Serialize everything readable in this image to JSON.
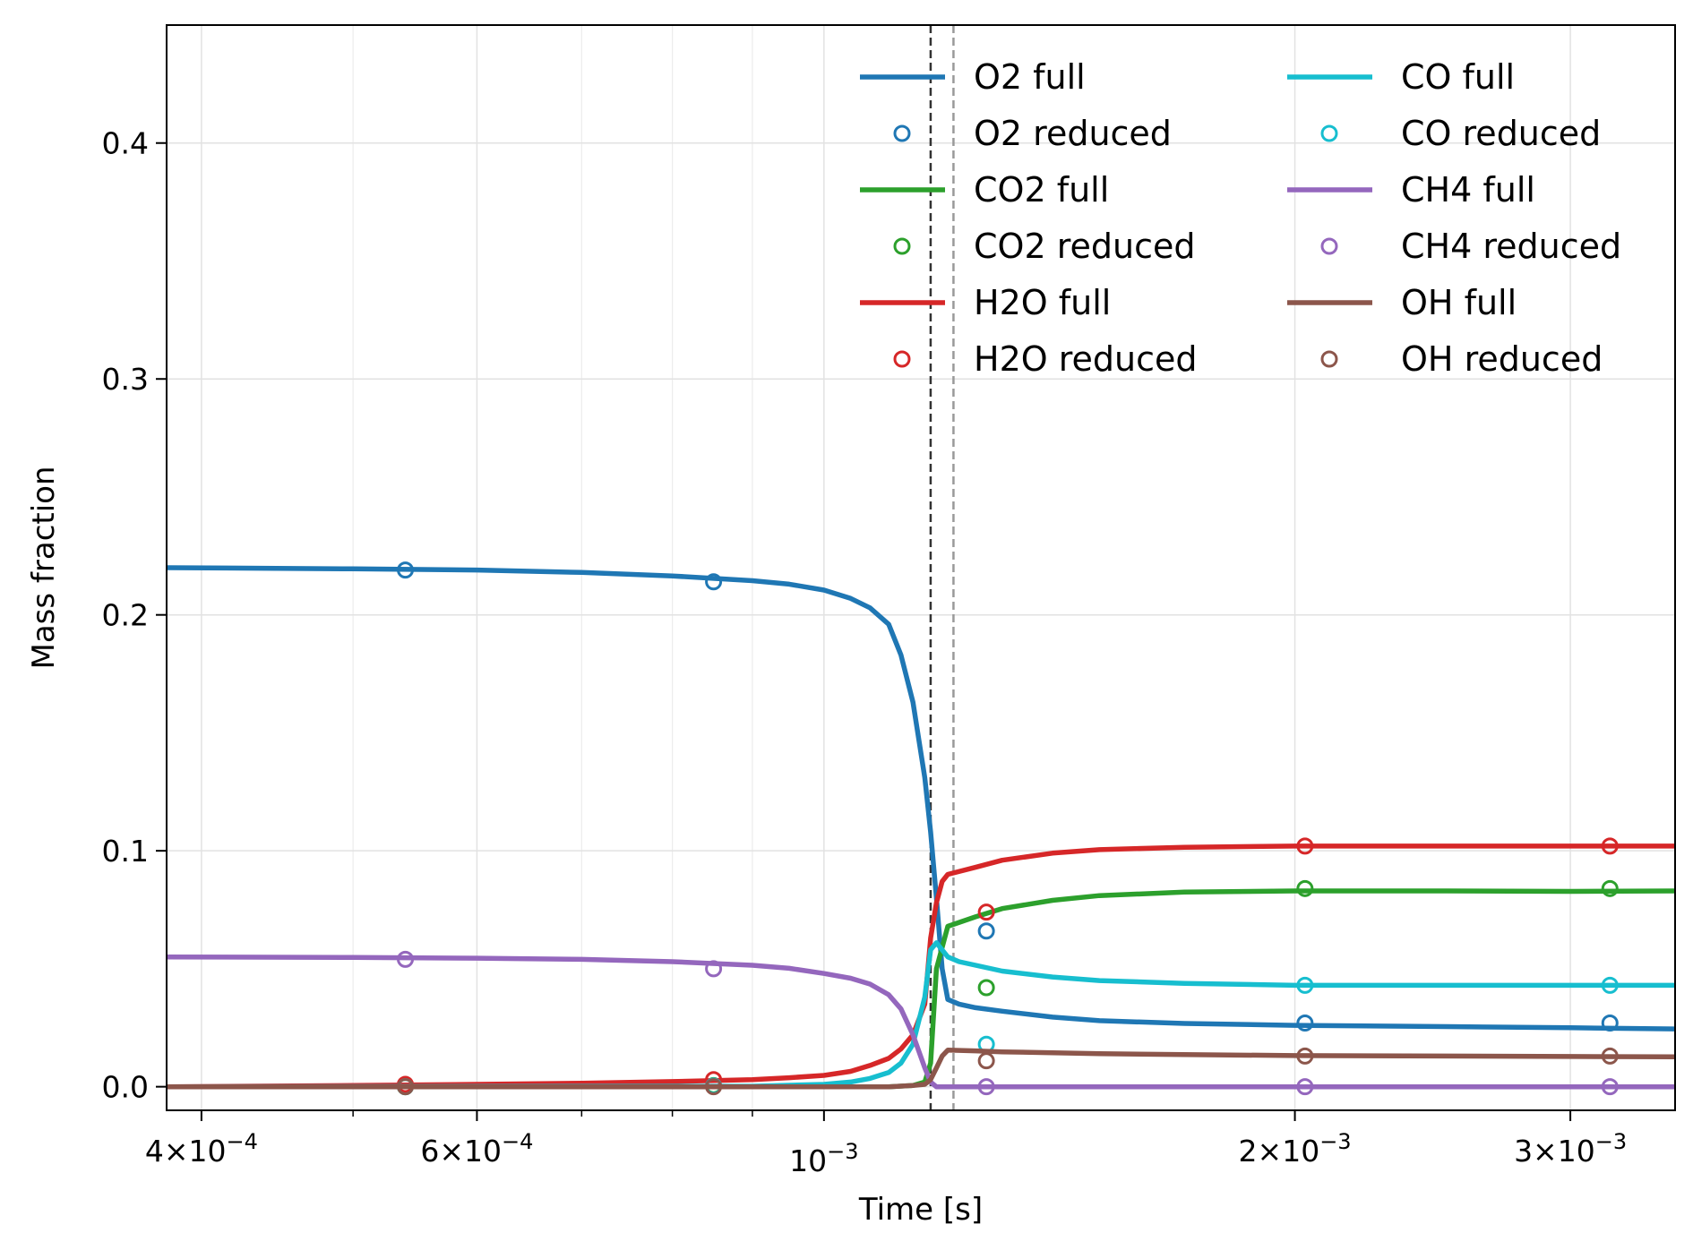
{
  "chart_data": {
    "type": "line",
    "title": "",
    "xlabel": "Time [s]",
    "ylabel": "Mass fraction",
    "xscale": "log",
    "xlim": [
      0.00038,
      0.0035
    ],
    "ylim": [
      -0.01,
      0.45
    ],
    "grid": true,
    "legend_position": "top-right",
    "x_ticks": [
      {
        "value": 0.0004,
        "mantissa": "4",
        "exponent": "−4"
      },
      {
        "value": 0.0006,
        "mantissa": "6",
        "exponent": "−4"
      },
      {
        "value": 0.001,
        "mantissa": "",
        "exponent": "−3"
      },
      {
        "value": 0.002,
        "mantissa": "2",
        "exponent": "−3"
      },
      {
        "value": 0.003,
        "mantissa": "3",
        "exponent": "−3"
      }
    ],
    "x_minor_ticks": [
      0.0005,
      0.0007,
      0.0008,
      0.0009
    ],
    "y_ticks": [
      {
        "value": 0.0,
        "label": "0.0"
      },
      {
        "value": 0.1,
        "label": "0.1"
      },
      {
        "value": 0.2,
        "label": "0.2"
      },
      {
        "value": 0.3,
        "label": "0.3"
      },
      {
        "value": 0.4,
        "label": "0.4"
      }
    ],
    "vlines": [
      {
        "x": 0.00117,
        "color": "#333333"
      },
      {
        "x": 0.00121,
        "color": "#999999"
      }
    ],
    "series": [
      {
        "name": "O2 full",
        "color": "#1f77b4",
        "kind": "line",
        "x": [
          0.00038,
          0.0005,
          0.0006,
          0.0007,
          0.0008,
          0.0009,
          0.00095,
          0.001,
          0.00104,
          0.00107,
          0.0011,
          0.00112,
          0.00114,
          0.00116,
          0.00117,
          0.00118,
          0.00119,
          0.0012,
          0.00122,
          0.00125,
          0.0013,
          0.0014,
          0.0015,
          0.0017,
          0.002,
          0.0025,
          0.003,
          0.0035
        ],
        "y": [
          0.22,
          0.2195,
          0.219,
          0.218,
          0.2165,
          0.2145,
          0.213,
          0.2105,
          0.207,
          0.203,
          0.196,
          0.183,
          0.163,
          0.131,
          0.108,
          0.08,
          0.05,
          0.037,
          0.035,
          0.0335,
          0.032,
          0.0295,
          0.028,
          0.0268,
          0.026,
          0.0255,
          0.025,
          0.0245
        ]
      },
      {
        "name": "O2 reduced",
        "color": "#1f77b4",
        "kind": "markers",
        "x": [
          0.00054,
          0.00085,
          0.00127,
          0.00203,
          0.00318
        ],
        "y": [
          0.219,
          0.214,
          0.066,
          0.027,
          0.027
        ]
      },
      {
        "name": "CO2 full",
        "color": "#2ca02c",
        "kind": "line",
        "x": [
          0.00038,
          0.001,
          0.0011,
          0.00114,
          0.00116,
          0.00117,
          0.00118,
          0.0012,
          0.00125,
          0.0013,
          0.0014,
          0.0015,
          0.0017,
          0.002,
          0.0025,
          0.003,
          0.0035
        ],
        "y": [
          0.0,
          0.0,
          0.0,
          0.0005,
          0.002,
          0.01,
          0.05,
          0.068,
          0.072,
          0.0755,
          0.079,
          0.081,
          0.0825,
          0.083,
          0.083,
          0.0828,
          0.083
        ]
      },
      {
        "name": "CO2 reduced",
        "color": "#2ca02c",
        "kind": "markers",
        "x": [
          0.00054,
          0.00085,
          0.00127,
          0.00203,
          0.00318
        ],
        "y": [
          0.0,
          0.0005,
          0.042,
          0.084,
          0.084
        ]
      },
      {
        "name": "H2O full",
        "color": "#d62728",
        "kind": "line",
        "x": [
          0.00038,
          0.0005,
          0.0006,
          0.0007,
          0.0008,
          0.0009,
          0.00095,
          0.001,
          0.00104,
          0.00107,
          0.0011,
          0.00112,
          0.00114,
          0.00116,
          0.00117,
          0.00118,
          0.00119,
          0.0012,
          0.00125,
          0.0013,
          0.0014,
          0.0015,
          0.0017,
          0.002,
          0.0025,
          0.003,
          0.0035
        ],
        "y": [
          0.0,
          0.0005,
          0.001,
          0.0015,
          0.0022,
          0.003,
          0.0038,
          0.0048,
          0.0065,
          0.009,
          0.012,
          0.016,
          0.022,
          0.035,
          0.063,
          0.078,
          0.087,
          0.09,
          0.093,
          0.096,
          0.099,
          0.1005,
          0.1015,
          0.102,
          0.102,
          0.102,
          0.102
        ]
      },
      {
        "name": "H2O reduced",
        "color": "#d62728",
        "kind": "markers",
        "x": [
          0.00054,
          0.00085,
          0.00127,
          0.00203,
          0.00318
        ],
        "y": [
          0.001,
          0.003,
          0.074,
          0.102,
          0.102
        ]
      },
      {
        "name": "CO full",
        "color": "#17becf",
        "kind": "line",
        "x": [
          0.00038,
          0.0009,
          0.001,
          0.00104,
          0.00107,
          0.0011,
          0.00112,
          0.00114,
          0.00116,
          0.00117,
          0.00118,
          0.0012,
          0.00122,
          0.00125,
          0.0013,
          0.0014,
          0.0015,
          0.0017,
          0.002,
          0.0025,
          0.003,
          0.0035
        ],
        "y": [
          0.0,
          0.0002,
          0.001,
          0.002,
          0.0035,
          0.006,
          0.01,
          0.018,
          0.038,
          0.058,
          0.061,
          0.055,
          0.053,
          0.0515,
          0.049,
          0.0465,
          0.045,
          0.0438,
          0.043,
          0.043,
          0.043,
          0.043
        ]
      },
      {
        "name": "CO reduced",
        "color": "#17becf",
        "kind": "markers",
        "x": [
          0.00054,
          0.00085,
          0.00127,
          0.00203,
          0.00318
        ],
        "y": [
          0.0,
          0.0003,
          0.018,
          0.043,
          0.043
        ]
      },
      {
        "name": "CH4 full",
        "color": "#9467bd",
        "kind": "line",
        "x": [
          0.00038,
          0.0005,
          0.0006,
          0.0007,
          0.0008,
          0.0009,
          0.00095,
          0.001,
          0.00104,
          0.00107,
          0.0011,
          0.00112,
          0.00114,
          0.00116,
          0.00117,
          0.00118,
          0.0012,
          0.0013,
          0.0015,
          0.002,
          0.003,
          0.0035
        ],
        "y": [
          0.055,
          0.0548,
          0.0545,
          0.054,
          0.053,
          0.0515,
          0.0502,
          0.048,
          0.046,
          0.0435,
          0.039,
          0.033,
          0.022,
          0.008,
          0.002,
          0.0,
          0.0,
          0.0,
          0.0,
          0.0,
          0.0,
          0.0
        ]
      },
      {
        "name": "CH4 reduced",
        "color": "#9467bd",
        "kind": "markers",
        "x": [
          0.00054,
          0.00085,
          0.00127,
          0.00203,
          0.00318
        ],
        "y": [
          0.054,
          0.05,
          0.0,
          0.0,
          0.0
        ]
      },
      {
        "name": "OH full",
        "color": "#8c564b",
        "kind": "line",
        "x": [
          0.00038,
          0.0011,
          0.00114,
          0.00116,
          0.00117,
          0.00118,
          0.00119,
          0.0012,
          0.00125,
          0.0013,
          0.0015,
          0.002,
          0.0025,
          0.003,
          0.0035
        ],
        "y": [
          0.0,
          0.0,
          0.0005,
          0.001,
          0.003,
          0.008,
          0.013,
          0.0155,
          0.0152,
          0.0148,
          0.014,
          0.0132,
          0.013,
          0.0128,
          0.0127
        ]
      },
      {
        "name": "OH reduced",
        "color": "#8c564b",
        "kind": "markers",
        "x": [
          0.00054,
          0.00085,
          0.00127,
          0.00203,
          0.00318
        ],
        "y": [
          0.0,
          0.0,
          0.011,
          0.013,
          0.013
        ]
      }
    ]
  }
}
